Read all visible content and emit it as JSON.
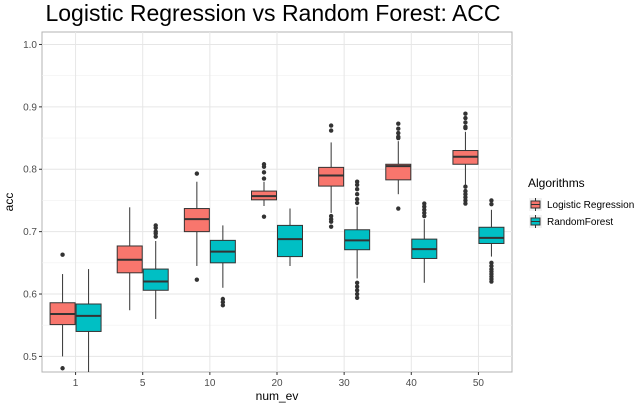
{
  "chart_data": {
    "type": "boxplot",
    "title": "Logistic Regression vs Random Forest: ACC",
    "xlabel": "num_ev",
    "ylabel": "acc",
    "ylim": [
      0.475,
      1.02
    ],
    "yticks": [
      0.5,
      0.6,
      0.7,
      0.8,
      0.9,
      1.0
    ],
    "ytick_labels": [
      "0.5",
      "0.6",
      "0.7",
      "0.8",
      "0.9",
      "1.0"
    ],
    "categories": [
      "1",
      "5",
      "10",
      "20",
      "30",
      "40",
      "50"
    ],
    "grid": true,
    "legend": {
      "title": "Algorithms",
      "placement": "right"
    },
    "series": [
      {
        "name": "Logistic Regression",
        "color": "#F8766D",
        "boxes": [
          {
            "whislo": 0.5,
            "q1": 0.551,
            "med": 0.568,
            "q3": 0.586,
            "whishi": 0.632,
            "fliers": [
              0.663,
              0.481
            ]
          },
          {
            "whislo": 0.574,
            "q1": 0.634,
            "med": 0.655,
            "q3": 0.677,
            "whishi": 0.739,
            "fliers": []
          },
          {
            "whislo": 0.645,
            "q1": 0.7,
            "med": 0.72,
            "q3": 0.737,
            "whishi": 0.78,
            "fliers": [
              0.793,
              0.623
            ]
          },
          {
            "whislo": 0.741,
            "q1": 0.751,
            "med": 0.757,
            "q3": 0.765,
            "whishi": 0.78,
            "fliers": [
              0.808,
              0.804,
              0.795,
              0.785,
              0.724
            ]
          },
          {
            "whislo": 0.73,
            "q1": 0.773,
            "med": 0.79,
            "q3": 0.803,
            "whishi": 0.843,
            "fliers": [
              0.87,
              0.862,
              0.725,
              0.72,
              0.716,
              0.708
            ]
          },
          {
            "whislo": 0.76,
            "q1": 0.783,
            "med": 0.805,
            "q3": 0.808,
            "whishi": 0.845,
            "fliers": [
              0.873,
              0.865,
              0.858,
              0.852,
              0.85,
              0.737
            ]
          },
          {
            "whislo": 0.775,
            "q1": 0.808,
            "med": 0.82,
            "q3": 0.83,
            "whishi": 0.86,
            "fliers": [
              0.889,
              0.882,
              0.875,
              0.868,
              0.866,
              0.772,
              0.765,
              0.76,
              0.755,
              0.75,
              0.745
            ]
          }
        ]
      },
      {
        "name": "RandomForest",
        "color": "#00BFC4",
        "boxes": [
          {
            "whislo": 0.475,
            "q1": 0.54,
            "med": 0.565,
            "q3": 0.584,
            "whishi": 0.64,
            "fliers": []
          },
          {
            "whislo": 0.56,
            "q1": 0.606,
            "med": 0.62,
            "q3": 0.64,
            "whishi": 0.685,
            "fliers": [
              0.71,
              0.706,
              0.7,
              0.697,
              0.692
            ]
          },
          {
            "whislo": 0.61,
            "q1": 0.65,
            "med": 0.668,
            "q3": 0.686,
            "whishi": 0.71,
            "fliers": [
              0.592,
              0.587,
              0.582
            ]
          },
          {
            "whislo": 0.645,
            "q1": 0.66,
            "med": 0.688,
            "q3": 0.71,
            "whishi": 0.737,
            "fliers": []
          },
          {
            "whislo": 0.625,
            "q1": 0.671,
            "med": 0.686,
            "q3": 0.703,
            "whishi": 0.74,
            "fliers": [
              0.78,
              0.775,
              0.768,
              0.76,
              0.752,
              0.746,
              0.618,
              0.612,
              0.606,
              0.6,
              0.594
            ]
          },
          {
            "whislo": 0.618,
            "q1": 0.657,
            "med": 0.672,
            "q3": 0.688,
            "whishi": 0.72,
            "fliers": [
              0.745,
              0.74,
              0.735,
              0.73,
              0.725
            ]
          },
          {
            "whislo": 0.66,
            "q1": 0.681,
            "med": 0.69,
            "q3": 0.707,
            "whishi": 0.735,
            "fliers": [
              0.75,
              0.744,
              0.65,
              0.645,
              0.64,
              0.636,
              0.632,
              0.628,
              0.624,
              0.62
            ]
          }
        ]
      }
    ]
  }
}
